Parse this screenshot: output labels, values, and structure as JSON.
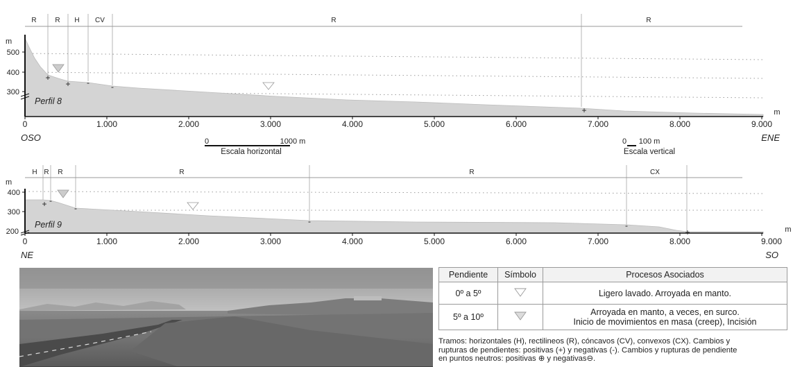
{
  "profile8": {
    "name": "Perfil 8",
    "dir_left": "OSO",
    "dir_right": "ENE",
    "unit_label": "m",
    "y_ticks": [
      "500",
      "400",
      "300"
    ],
    "x_ticks": [
      "0",
      "1.000",
      "2.000",
      "3.000",
      "4.000",
      "5.000",
      "6.000",
      "7.000",
      "8.000",
      "9.000"
    ],
    "segments": [
      "R",
      "R",
      "H",
      "CV",
      "R",
      "R"
    ],
    "breaks": [
      "+",
      "+",
      "-",
      "-",
      "+"
    ]
  },
  "profile9": {
    "name": "Perfil 9",
    "dir_left": "NE",
    "dir_right": "SO",
    "unit_label": "m",
    "y_ticks": [
      "400",
      "300",
      "200"
    ],
    "x_ticks": [
      "0",
      "1.000",
      "2.000",
      "3.000",
      "4.000",
      "5.000",
      "6.000",
      "7.000",
      "8.000",
      "9.000"
    ],
    "segments": [
      "H",
      "R",
      "R",
      "R",
      "R",
      "CX"
    ],
    "breaks": [
      "+",
      "-",
      "-",
      "-",
      "-",
      "+"
    ]
  },
  "scales": {
    "h_zero": "0",
    "h_end": "1000 m",
    "h_label": "Escala horizontal",
    "v_zero": "0",
    "v_end": "100 m",
    "v_label": "Escala vertical"
  },
  "legend": {
    "headers": [
      "Pendiente",
      "Símbolo",
      "Procesos Asociados"
    ],
    "rows": [
      {
        "pendiente": "0º a 5º",
        "symbol": "light-triangle-icon",
        "process_lines": [
          "Ligero lavado. Arroyada en manto."
        ]
      },
      {
        "pendiente": "5º a 10º",
        "symbol": "gray-triangle-icon",
        "process_lines": [
          "Arroyada en manto, a veces, en surco.",
          "Inicio de movimientos en masa (creep),  Incisión"
        ]
      }
    ]
  },
  "note_lines": [
    "Tramos: horizontales (H), rectilineos (R), cóncavos (CV), convexos (CX). Cambios y",
    "rupturas de pendientes: positivas (+) y negativas (-). Cambios y rupturas de pendiente",
    "en puntos neutros: positivas ⊕ y negativas⊖."
  ],
  "colors": {
    "profile_fill": "#d4d4d4",
    "dotted_line": "#9a9a9a",
    "triangle_light": "#ffffff",
    "triangle_gray": "#cccccc"
  }
}
